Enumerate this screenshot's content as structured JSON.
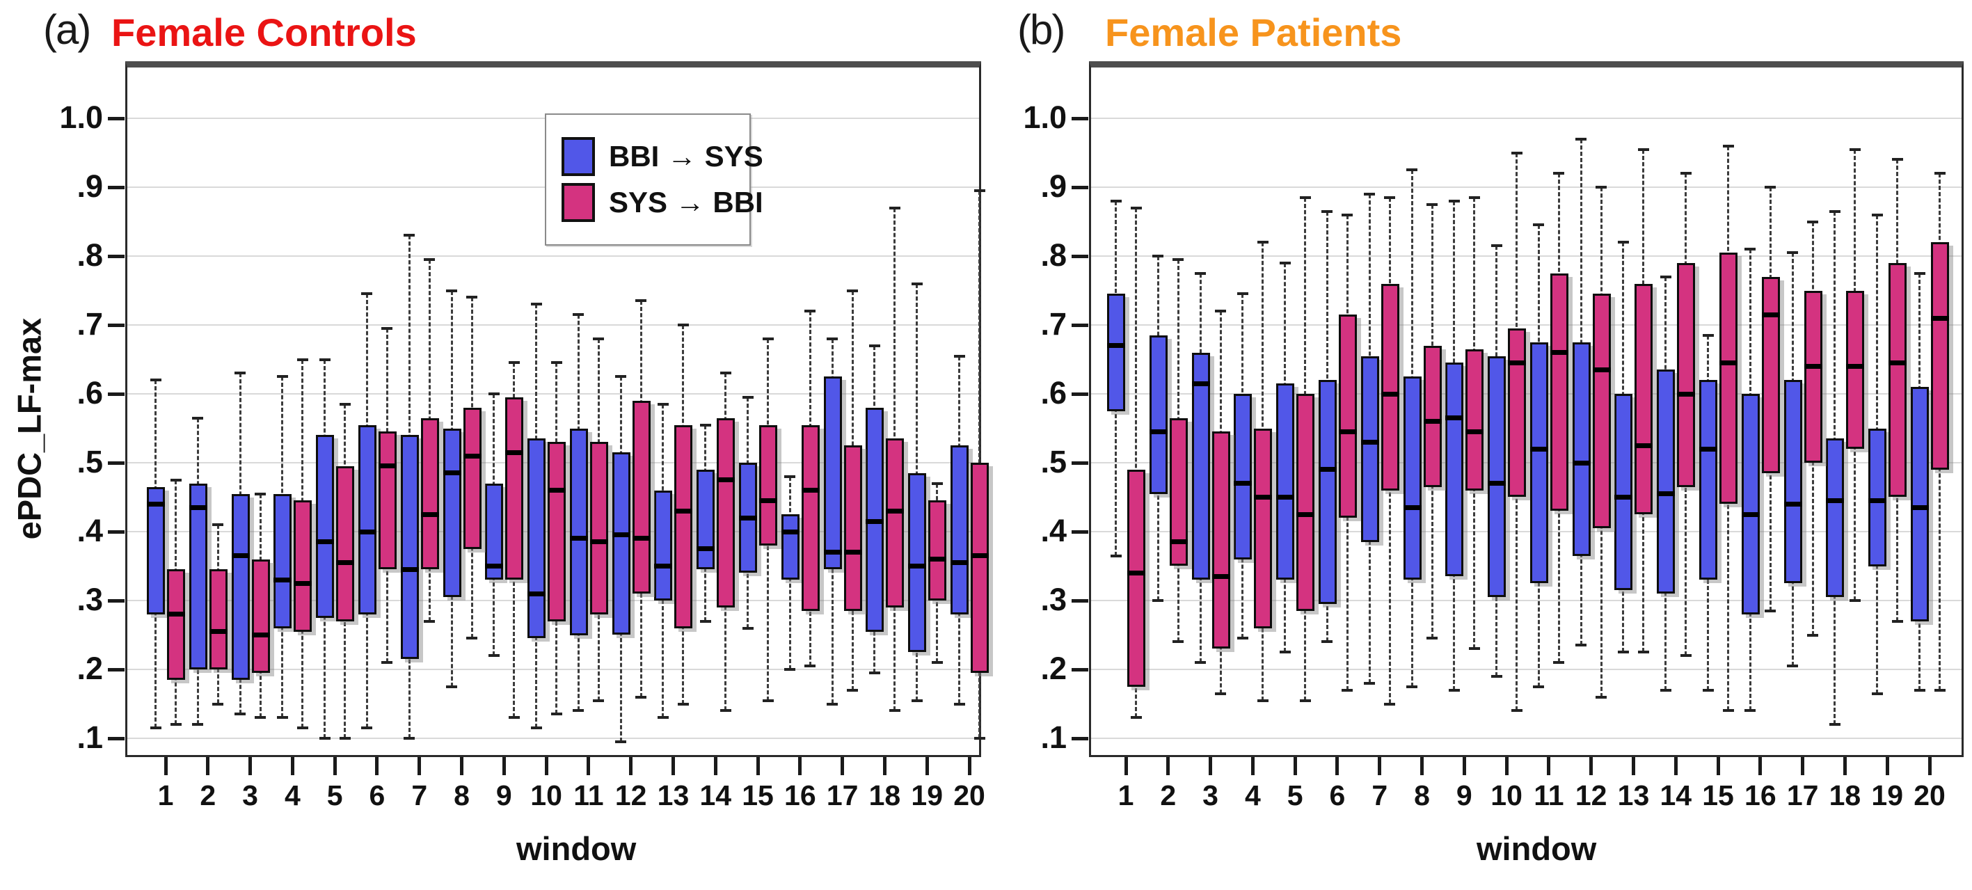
{
  "figure": {
    "panels": [
      {
        "key": "a",
        "letter": "(a)",
        "title": "Female Controls",
        "title_color": "#ea1414"
      },
      {
        "key": "b",
        "letter": "(b)",
        "title": "Female Patients",
        "title_color": "#f7941d"
      }
    ],
    "legend": {
      "items": [
        {
          "label": "BBI → SYS",
          "color": "#5157e8"
        },
        {
          "label": "SYS → BBI",
          "color": "#d43380"
        }
      ]
    }
  },
  "chart_data": [
    {
      "type": "boxplot",
      "panel": "a",
      "title": "Female Controls",
      "xlabel": "window",
      "ylabel": "ePDC_LF-max",
      "grid": "horizontal",
      "legend_position": "inside-top-center",
      "ylim": [
        0.07,
        1.08
      ],
      "yticks": [
        1.0,
        0.9,
        0.8,
        0.7,
        0.6,
        0.5,
        0.4,
        0.3,
        0.2,
        0.1
      ],
      "ytick_labels": [
        "1.0",
        ".9",
        ".8",
        ".7",
        ".6",
        ".5",
        ".4",
        ".3",
        ".2",
        ".1"
      ],
      "categories": [
        "1",
        "2",
        "3",
        "4",
        "5",
        "6",
        "7",
        "8",
        "9",
        "10",
        "11",
        "12",
        "13",
        "14",
        "15",
        "16",
        "17",
        "18",
        "19",
        "20"
      ],
      "box_format": [
        "whisker_low",
        "q1",
        "median",
        "q3",
        "whisker_high"
      ],
      "series": [
        {
          "name": "BBI → SYS",
          "color": "#5157e8",
          "boxes": [
            [
              0.115,
              0.28,
              0.44,
              0.465,
              0.62
            ],
            [
              0.12,
              0.2,
              0.435,
              0.47,
              0.565
            ],
            [
              0.135,
              0.185,
              0.365,
              0.455,
              0.63
            ],
            [
              0.13,
              0.26,
              0.33,
              0.455,
              0.625
            ],
            [
              0.1,
              0.275,
              0.385,
              0.54,
              0.65
            ],
            [
              0.115,
              0.28,
              0.4,
              0.555,
              0.745
            ],
            [
              0.1,
              0.215,
              0.345,
              0.54,
              0.83
            ],
            [
              0.175,
              0.305,
              0.485,
              0.55,
              0.75
            ],
            [
              0.22,
              0.33,
              0.35,
              0.47,
              0.6
            ],
            [
              0.115,
              0.245,
              0.31,
              0.535,
              0.73
            ],
            [
              0.14,
              0.25,
              0.39,
              0.55,
              0.715
            ],
            [
              0.095,
              0.25,
              0.395,
              0.515,
              0.625
            ],
            [
              0.13,
              0.3,
              0.35,
              0.46,
              0.585
            ],
            [
              0.27,
              0.345,
              0.375,
              0.49,
              0.555
            ],
            [
              0.26,
              0.34,
              0.42,
              0.5,
              0.595
            ],
            [
              0.2,
              0.33,
              0.4,
              0.425,
              0.48
            ],
            [
              0.15,
              0.345,
              0.37,
              0.625,
              0.68
            ],
            [
              0.195,
              0.255,
              0.415,
              0.58,
              0.67
            ],
            [
              0.155,
              0.225,
              0.35,
              0.485,
              0.76
            ],
            [
              0.15,
              0.28,
              0.355,
              0.525,
              0.655
            ]
          ]
        },
        {
          "name": "SYS → BBI",
          "color": "#d43380",
          "boxes": [
            [
              0.12,
              0.185,
              0.28,
              0.345,
              0.475
            ],
            [
              0.15,
              0.2,
              0.255,
              0.345,
              0.41
            ],
            [
              0.13,
              0.195,
              0.25,
              0.36,
              0.455
            ],
            [
              0.115,
              0.255,
              0.325,
              0.445,
              0.65
            ],
            [
              0.1,
              0.27,
              0.355,
              0.495,
              0.585
            ],
            [
              0.21,
              0.345,
              0.495,
              0.545,
              0.695
            ],
            [
              0.27,
              0.345,
              0.425,
              0.565,
              0.795
            ],
            [
              0.245,
              0.375,
              0.51,
              0.58,
              0.74
            ],
            [
              0.13,
              0.33,
              0.515,
              0.595,
              0.645
            ],
            [
              0.135,
              0.27,
              0.46,
              0.53,
              0.645
            ],
            [
              0.155,
              0.28,
              0.385,
              0.53,
              0.68
            ],
            [
              0.16,
              0.31,
              0.39,
              0.59,
              0.735
            ],
            [
              0.15,
              0.26,
              0.43,
              0.555,
              0.7
            ],
            [
              0.14,
              0.29,
              0.475,
              0.565,
              0.63
            ],
            [
              0.155,
              0.38,
              0.445,
              0.555,
              0.68
            ],
            [
              0.205,
              0.285,
              0.46,
              0.555,
              0.72
            ],
            [
              0.17,
              0.285,
              0.37,
              0.525,
              0.75
            ],
            [
              0.14,
              0.29,
              0.43,
              0.535,
              0.87
            ],
            [
              0.21,
              0.3,
              0.36,
              0.445,
              0.47
            ],
            [
              0.1,
              0.195,
              0.365,
              0.5,
              0.895
            ]
          ]
        }
      ]
    },
    {
      "type": "boxplot",
      "panel": "b",
      "title": "Female Patients",
      "xlabel": "window",
      "ylabel": "",
      "grid": "horizontal",
      "legend_position": "none",
      "ylim": [
        0.07,
        1.08
      ],
      "yticks": [
        1.0,
        0.9,
        0.8,
        0.7,
        0.6,
        0.5,
        0.4,
        0.3,
        0.2,
        0.1
      ],
      "ytick_labels": [
        "1.0",
        ".9",
        ".8",
        ".7",
        ".6",
        ".5",
        ".4",
        ".3",
        ".2",
        ".1"
      ],
      "categories": [
        "1",
        "2",
        "3",
        "4",
        "5",
        "6",
        "7",
        "8",
        "9",
        "10",
        "11",
        "12",
        "13",
        "14",
        "15",
        "16",
        "17",
        "18",
        "19",
        "20"
      ],
      "box_format": [
        "whisker_low",
        "q1",
        "median",
        "q3",
        "whisker_high"
      ],
      "series": [
        {
          "name": "BBI → SYS",
          "color": "#5157e8",
          "boxes": [
            [
              0.365,
              0.575,
              0.67,
              0.745,
              0.88
            ],
            [
              0.3,
              0.455,
              0.545,
              0.685,
              0.8
            ],
            [
              0.21,
              0.33,
              0.615,
              0.66,
              0.775
            ],
            [
              0.245,
              0.36,
              0.47,
              0.6,
              0.745
            ],
            [
              0.225,
              0.33,
              0.45,
              0.615,
              0.79
            ],
            [
              0.24,
              0.295,
              0.49,
              0.62,
              0.865
            ],
            [
              0.18,
              0.385,
              0.53,
              0.655,
              0.89
            ],
            [
              0.175,
              0.33,
              0.435,
              0.625,
              0.925
            ],
            [
              0.17,
              0.335,
              0.565,
              0.645,
              0.88
            ],
            [
              0.19,
              0.305,
              0.47,
              0.655,
              0.815
            ],
            [
              0.175,
              0.325,
              0.52,
              0.675,
              0.845
            ],
            [
              0.235,
              0.365,
              0.5,
              0.675,
              0.97
            ],
            [
              0.225,
              0.315,
              0.45,
              0.6,
              0.82
            ],
            [
              0.17,
              0.31,
              0.455,
              0.635,
              0.77
            ],
            [
              0.17,
              0.33,
              0.52,
              0.62,
              0.685
            ],
            [
              0.14,
              0.28,
              0.425,
              0.6,
              0.81
            ],
            [
              0.205,
              0.325,
              0.44,
              0.62,
              0.805
            ],
            [
              0.12,
              0.305,
              0.445,
              0.535,
              0.865
            ],
            [
              0.165,
              0.35,
              0.445,
              0.55,
              0.86
            ],
            [
              0.17,
              0.27,
              0.435,
              0.61,
              0.775
            ]
          ]
        },
        {
          "name": "SYS → BBI",
          "color": "#d43380",
          "boxes": [
            [
              0.13,
              0.175,
              0.34,
              0.49,
              0.87
            ],
            [
              0.24,
              0.35,
              0.385,
              0.565,
              0.795
            ],
            [
              0.165,
              0.23,
              0.335,
              0.545,
              0.72
            ],
            [
              0.155,
              0.26,
              0.45,
              0.55,
              0.82
            ],
            [
              0.155,
              0.285,
              0.425,
              0.6,
              0.885
            ],
            [
              0.17,
              0.42,
              0.545,
              0.715,
              0.86
            ],
            [
              0.15,
              0.46,
              0.6,
              0.76,
              0.885
            ],
            [
              0.245,
              0.465,
              0.56,
              0.67,
              0.875
            ],
            [
              0.23,
              0.46,
              0.545,
              0.665,
              0.885
            ],
            [
              0.14,
              0.45,
              0.645,
              0.695,
              0.95
            ],
            [
              0.21,
              0.43,
              0.66,
              0.775,
              0.92
            ],
            [
              0.16,
              0.405,
              0.635,
              0.745,
              0.9
            ],
            [
              0.225,
              0.425,
              0.525,
              0.76,
              0.955
            ],
            [
              0.22,
              0.465,
              0.6,
              0.79,
              0.92
            ],
            [
              0.14,
              0.44,
              0.645,
              0.805,
              0.96
            ],
            [
              0.285,
              0.485,
              0.715,
              0.77,
              0.9
            ],
            [
              0.25,
              0.5,
              0.64,
              0.75,
              0.85
            ],
            [
              0.3,
              0.52,
              0.64,
              0.75,
              0.955
            ],
            [
              0.27,
              0.45,
              0.645,
              0.79,
              0.94
            ],
            [
              0.17,
              0.49,
              0.71,
              0.82,
              0.92
            ]
          ]
        }
      ]
    }
  ]
}
